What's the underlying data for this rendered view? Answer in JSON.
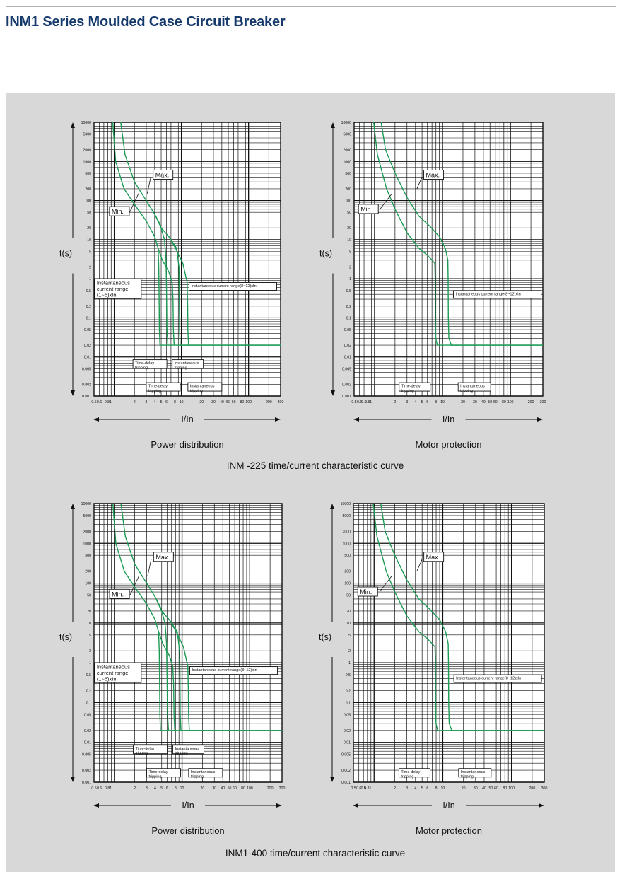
{
  "page": {
    "title": "INM1 Series Moulded Case Circuit Breaker",
    "colors": {
      "title": "#163a6b",
      "panel": "#d8d8d8",
      "grid": "#111111",
      "curve": "#1c9a55"
    }
  },
  "y_ticks": [
    "10000",
    "5000",
    "2000",
    "1000",
    "500",
    "200",
    "100",
    "50",
    "20",
    "10",
    "5",
    "2",
    "1",
    "0.5",
    "0.2",
    "0.1",
    "0.05",
    "0.02",
    "0.01",
    "0.005",
    "0.002",
    "0.001"
  ],
  "x_ticks_pd": [
    "0.5",
    "0.6",
    "0.81",
    "2",
    "3",
    "4",
    "5",
    "6",
    "8",
    "10",
    "20",
    "30",
    "40",
    "50",
    "60",
    "80",
    "100",
    "200",
    "300"
  ],
  "x_ticks_mp": [
    "0.5",
    "0.6",
    "0.5",
    "0.81",
    "2",
    "3",
    "4",
    "5",
    "6",
    "8",
    "10",
    "20",
    "30",
    "40",
    "50",
    "60",
    "80",
    "100",
    "200",
    "300"
  ],
  "captions": {
    "row1": "INM -225 time/current characteristic curve",
    "row2": "INM1-400 time/current characteristic curve"
  },
  "chart_data": [
    {
      "type": "line",
      "title": "Power distribution",
      "xlabel": "I/In",
      "ylabel": "t(s)",
      "xscale": "log",
      "yscale": "log",
      "xlim": [
        0.5,
        300
      ],
      "ylim": [
        0.001,
        10000
      ],
      "grid": true,
      "annotations": [
        "Max.",
        "Min.",
        "Instantaneous current range (1~6)xIn",
        "Instantaneous current range(8~12)xIn",
        "Time-delay tripping",
        "Instantaneous tripping"
      ],
      "series": [
        {
          "values": [
            [
              0.95,
              10000
            ],
            [
              1.05,
              1000
            ],
            [
              1.4,
              200
            ],
            [
              2,
              80
            ],
            [
              3,
              30
            ],
            [
              4,
              12
            ],
            [
              4.5,
              6
            ],
            [
              4.6,
              2
            ],
            [
              4.65,
              0.5
            ],
            [
              4.7,
              0.05
            ],
            [
              4.8,
              0.02
            ],
            [
              300,
              0.02
            ]
          ]
        },
        {
          "values": [
            [
              1.25,
              10000
            ],
            [
              1.45,
              1500
            ],
            [
              2,
              300
            ],
            [
              3,
              100
            ],
            [
              4,
              45
            ],
            [
              5,
              20
            ],
            [
              6.5,
              12
            ],
            [
              8.5,
              6
            ],
            [
              9.2,
              2
            ],
            [
              9.3,
              0.5
            ],
            [
              9.4,
              0.05
            ],
            [
              9.6,
              0.02
            ],
            [
              300,
              0.02
            ]
          ]
        },
        {
          "values": [
            [
              4,
              45
            ],
            [
              4.8,
              25
            ],
            [
              5.6,
              10
            ],
            [
              5.9,
              3
            ],
            [
              6,
              0.5
            ],
            [
              6.1,
              0.05
            ],
            [
              6.3,
              0.02
            ]
          ]
        },
        {
          "values": [
            [
              4.5,
              6
            ],
            [
              5.2,
              3
            ],
            [
              6.5,
              1.5
            ],
            [
              7.3,
              0.8
            ],
            [
              7.5,
              0.3
            ],
            [
              7.6,
              0.05
            ],
            [
              7.8,
              0.02
            ]
          ]
        },
        {
          "values": [
            [
              6.5,
              12
            ],
            [
              8.2,
              6
            ],
            [
              10.5,
              2.5
            ],
            [
              12.2,
              0.8
            ],
            [
              12.4,
              0.2
            ],
            [
              12.5,
              0.05
            ],
            [
              12.8,
              0.02
            ]
          ]
        }
      ]
    },
    {
      "type": "line",
      "title": "Motor protection",
      "xlabel": "I/In",
      "ylabel": "t(s)",
      "xscale": "log",
      "yscale": "log",
      "xlim": [
        0.5,
        300
      ],
      "ylim": [
        0.001,
        10000
      ],
      "grid": true,
      "annotations": [
        "Max.",
        "Min.",
        "Instantaneous current range(8~12)xIn",
        "Time-delay tripping",
        "Instantaneous tripping"
      ],
      "series": [
        {
          "values": [
            [
              0.97,
              10000
            ],
            [
              1.1,
              1500
            ],
            [
              1.5,
              200
            ],
            [
              2,
              60
            ],
            [
              3,
              15
            ],
            [
              4.5,
              6
            ],
            [
              6,
              4
            ],
            [
              7,
              3
            ],
            [
              7.7,
              2.5
            ],
            [
              7.8,
              1
            ],
            [
              7.85,
              0.1
            ],
            [
              7.95,
              0.03
            ],
            [
              8.4,
              0.02
            ],
            [
              300,
              0.02
            ]
          ]
        },
        {
          "values": [
            [
              1.25,
              10000
            ],
            [
              1.45,
              2000
            ],
            [
              2,
              500
            ],
            [
              3,
              120
            ],
            [
              4.5,
              40
            ],
            [
              6.5,
              22
            ],
            [
              9,
              12
            ],
            [
              11,
              6
            ],
            [
              12,
              3
            ],
            [
              12.1,
              1
            ],
            [
              12.2,
              0.1
            ],
            [
              12.4,
              0.03
            ],
            [
              13.5,
              0.02
            ],
            [
              300,
              0.02
            ]
          ]
        }
      ]
    },
    {
      "type": "line",
      "title": "Power distribution",
      "xlabel": "I/In",
      "ylabel": "t(s)",
      "xscale": "log",
      "yscale": "log",
      "xlim": [
        0.5,
        300
      ],
      "ylim": [
        0.001,
        10000
      ],
      "grid": true,
      "annotations": [
        "Max.",
        "Min.",
        "Instantaneous current range (1~6)xIn",
        "Instantaneous current range(8~12)xIn",
        "Time-delay tripping",
        "Instantaneous tripping"
      ],
      "series": [
        {
          "values": [
            [
              0.95,
              10000
            ],
            [
              1.05,
              1000
            ],
            [
              1.4,
              200
            ],
            [
              2,
              80
            ],
            [
              3,
              30
            ],
            [
              4,
              12
            ],
            [
              4.5,
              6
            ],
            [
              4.6,
              2
            ],
            [
              4.65,
              0.5
            ],
            [
              4.7,
              0.05
            ],
            [
              4.8,
              0.02
            ],
            [
              300,
              0.02
            ]
          ]
        },
        {
          "values": [
            [
              1.25,
              10000
            ],
            [
              1.45,
              1500
            ],
            [
              2,
              300
            ],
            [
              3,
              100
            ],
            [
              4,
              45
            ],
            [
              5,
              20
            ],
            [
              6.5,
              12
            ],
            [
              8.5,
              6
            ],
            [
              9.2,
              2
            ],
            [
              9.3,
              0.5
            ],
            [
              9.4,
              0.05
            ],
            [
              9.6,
              0.02
            ],
            [
              300,
              0.02
            ]
          ]
        },
        {
          "values": [
            [
              4,
              45
            ],
            [
              4.8,
              25
            ],
            [
              5.6,
              10
            ],
            [
              5.9,
              3
            ],
            [
              6,
              0.5
            ],
            [
              6.1,
              0.05
            ],
            [
              6.3,
              0.02
            ]
          ]
        },
        {
          "values": [
            [
              4.5,
              6
            ],
            [
              5.2,
              3
            ],
            [
              6.5,
              1.5
            ],
            [
              7.3,
              0.8
            ],
            [
              7.5,
              0.3
            ],
            [
              7.6,
              0.05
            ],
            [
              7.8,
              0.02
            ]
          ]
        },
        {
          "values": [
            [
              6.5,
              12
            ],
            [
              8.2,
              6
            ],
            [
              10.5,
              2.5
            ],
            [
              12.2,
              0.8
            ],
            [
              12.4,
              0.2
            ],
            [
              12.5,
              0.05
            ],
            [
              12.8,
              0.02
            ]
          ]
        }
      ]
    },
    {
      "type": "line",
      "title": "Motor protection",
      "xlabel": "I/In",
      "ylabel": "t(s)",
      "xscale": "log",
      "yscale": "log",
      "xlim": [
        0.5,
        300
      ],
      "ylim": [
        0.001,
        10000
      ],
      "grid": true,
      "annotations": [
        "Max.",
        "Min.",
        "Instantaneous current range(8~12)xIn",
        "Time-delay tripping",
        "Instantaneous tripping"
      ],
      "series": [
        {
          "values": [
            [
              0.97,
              10000
            ],
            [
              1.1,
              1500
            ],
            [
              1.5,
              200
            ],
            [
              2,
              60
            ],
            [
              3,
              15
            ],
            [
              4.5,
              6
            ],
            [
              6,
              4
            ],
            [
              7,
              3
            ],
            [
              7.7,
              2.5
            ],
            [
              7.8,
              1
            ],
            [
              7.85,
              0.1
            ],
            [
              7.95,
              0.03
            ],
            [
              8.4,
              0.02
            ],
            [
              300,
              0.02
            ]
          ]
        },
        {
          "values": [
            [
              1.25,
              10000
            ],
            [
              1.45,
              2000
            ],
            [
              2,
              500
            ],
            [
              3,
              120
            ],
            [
              4.5,
              40
            ],
            [
              6.5,
              22
            ],
            [
              9,
              12
            ],
            [
              11,
              6
            ],
            [
              12,
              3
            ],
            [
              12.1,
              1
            ],
            [
              12.2,
              0.1
            ],
            [
              12.4,
              0.03
            ],
            [
              13.5,
              0.02
            ],
            [
              300,
              0.02
            ]
          ]
        }
      ]
    }
  ]
}
